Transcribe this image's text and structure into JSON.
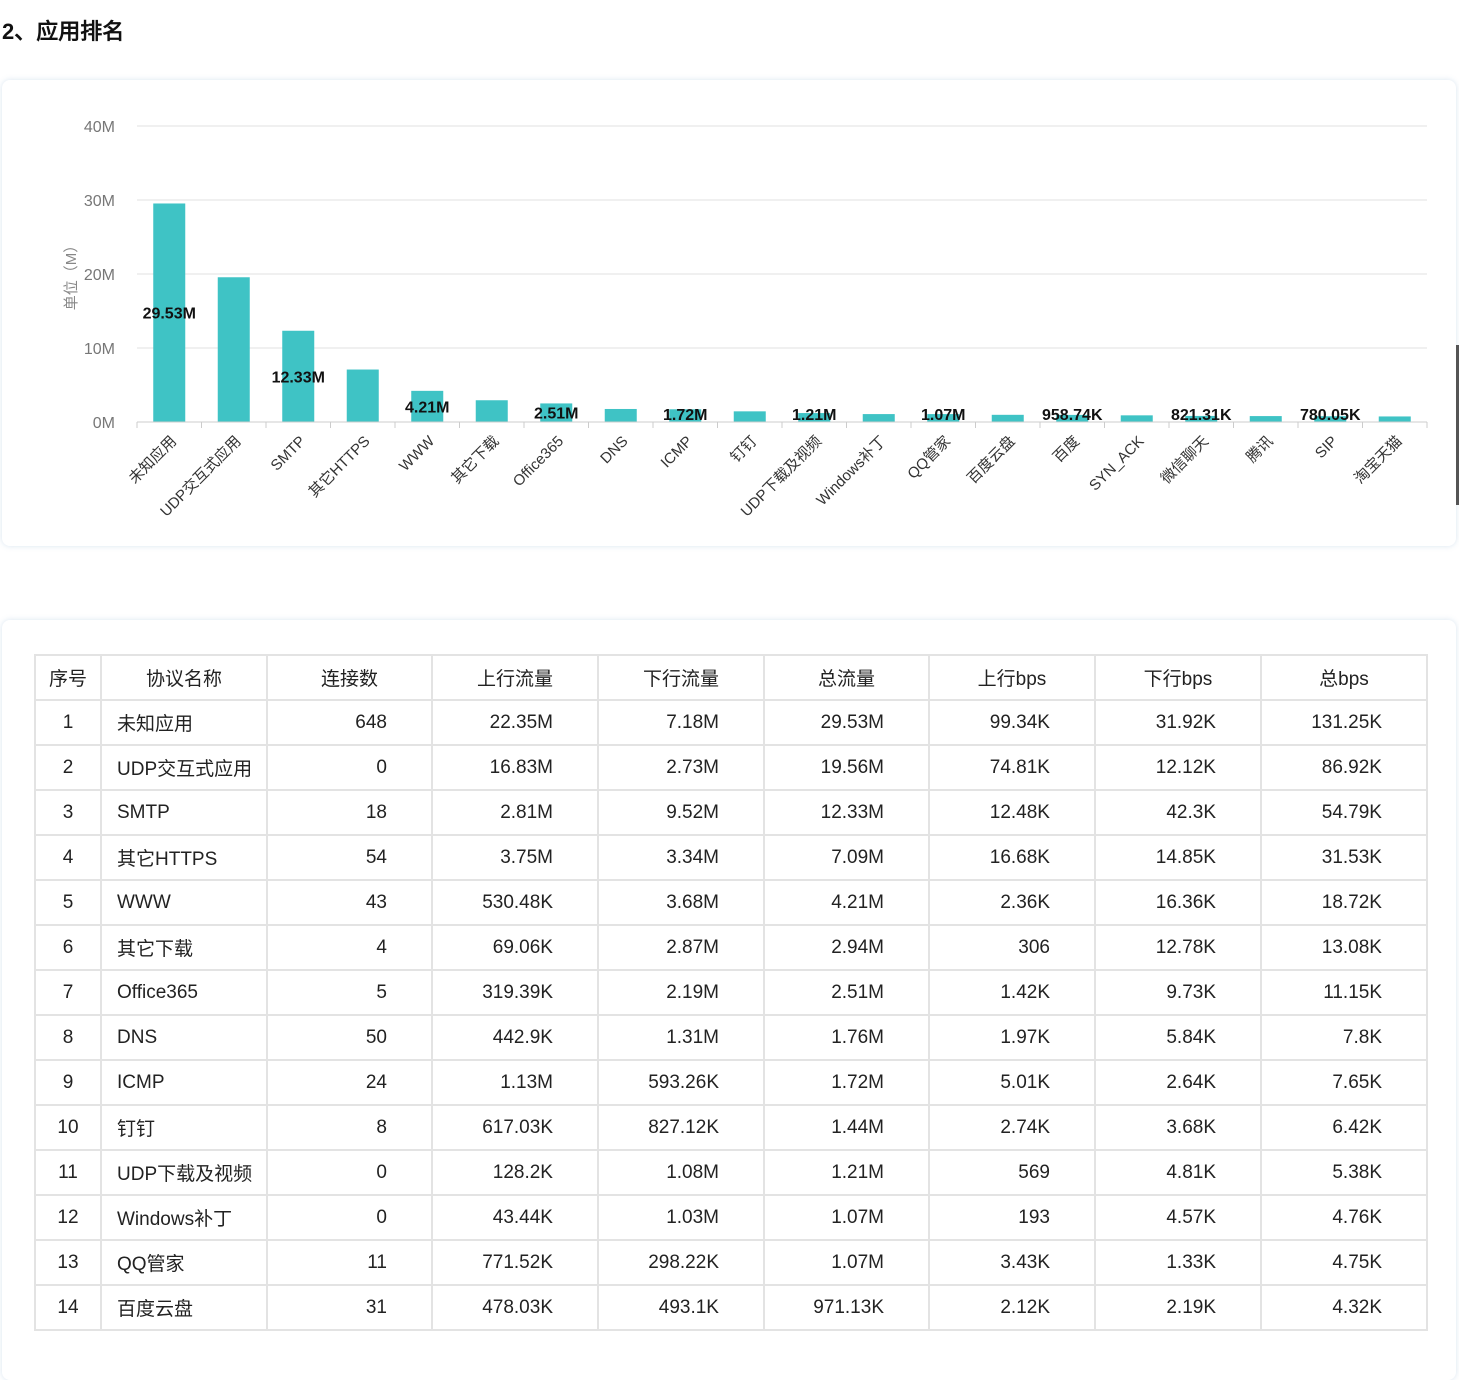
{
  "page": {
    "section_title": "2、应用排名"
  },
  "chart_data": {
    "type": "bar",
    "ylabel": "单位（M）",
    "ylim": [
      0,
      40
    ],
    "yticks": [
      "0M",
      "10M",
      "20M",
      "30M",
      "40M"
    ],
    "grid": true,
    "bar_color": "#3fc3c5",
    "categories": [
      "未知应用",
      "UDP交互式应用",
      "SMTP",
      "其它HTTPS",
      "WWW",
      "其它下载",
      "Office365",
      "DNS",
      "ICMP",
      "钉钉",
      "UDP下载及视频",
      "Windows补丁",
      "QQ管家",
      "百度云盘",
      "百度",
      "SYN_ACK",
      "微信聊天",
      "腾讯",
      "SIP",
      "淘宝天猫"
    ],
    "values": [
      29.53,
      19.56,
      12.33,
      7.09,
      4.21,
      2.94,
      2.51,
      1.76,
      1.72,
      1.44,
      1.21,
      1.07,
      1.07,
      0.97,
      0.96,
      0.9,
      0.82,
      0.8,
      0.78,
      0.75
    ],
    "labels": [
      "29.53M",
      "",
      "12.33M",
      "",
      "4.21M",
      "",
      "2.51M",
      "",
      "1.72M",
      "",
      "1.21M",
      "",
      "1.07M",
      "",
      "958.74K",
      "",
      "821.31K",
      "",
      "780.05K",
      ""
    ]
  },
  "table": {
    "headers": [
      "序号",
      "协议名称",
      "连接数",
      "上行流量",
      "下行流量",
      "总流量",
      "上行bps",
      "下行bps",
      "总bps"
    ],
    "rows": [
      [
        "1",
        "未知应用",
        "648",
        "22.35M",
        "7.18M",
        "29.53M",
        "99.34K",
        "31.92K",
        "131.25K"
      ],
      [
        "2",
        "UDP交互式应用",
        "0",
        "16.83M",
        "2.73M",
        "19.56M",
        "74.81K",
        "12.12K",
        "86.92K"
      ],
      [
        "3",
        "SMTP",
        "18",
        "2.81M",
        "9.52M",
        "12.33M",
        "12.48K",
        "42.3K",
        "54.79K"
      ],
      [
        "4",
        "其它HTTPS",
        "54",
        "3.75M",
        "3.34M",
        "7.09M",
        "16.68K",
        "14.85K",
        "31.53K"
      ],
      [
        "5",
        "WWW",
        "43",
        "530.48K",
        "3.68M",
        "4.21M",
        "2.36K",
        "16.36K",
        "18.72K"
      ],
      [
        "6",
        "其它下载",
        "4",
        "69.06K",
        "2.87M",
        "2.94M",
        "306",
        "12.78K",
        "13.08K"
      ],
      [
        "7",
        "Office365",
        "5",
        "319.39K",
        "2.19M",
        "2.51M",
        "1.42K",
        "9.73K",
        "11.15K"
      ],
      [
        "8",
        "DNS",
        "50",
        "442.9K",
        "1.31M",
        "1.76M",
        "1.97K",
        "5.84K",
        "7.8K"
      ],
      [
        "9",
        "ICMP",
        "24",
        "1.13M",
        "593.26K",
        "1.72M",
        "5.01K",
        "2.64K",
        "7.65K"
      ],
      [
        "10",
        "钉钉",
        "8",
        "617.03K",
        "827.12K",
        "1.44M",
        "2.74K",
        "3.68K",
        "6.42K"
      ],
      [
        "11",
        "UDP下载及视频",
        "0",
        "128.2K",
        "1.08M",
        "1.21M",
        "569",
        "4.81K",
        "5.38K"
      ],
      [
        "12",
        "Windows补丁",
        "0",
        "43.44K",
        "1.03M",
        "1.07M",
        "193",
        "4.57K",
        "4.76K"
      ],
      [
        "13",
        "QQ管家",
        "11",
        "771.52K",
        "298.22K",
        "1.07M",
        "3.43K",
        "1.33K",
        "4.75K"
      ],
      [
        "14",
        "百度云盘",
        "31",
        "478.03K",
        "493.1K",
        "971.13K",
        "2.12K",
        "2.19K",
        "4.32K"
      ]
    ]
  }
}
